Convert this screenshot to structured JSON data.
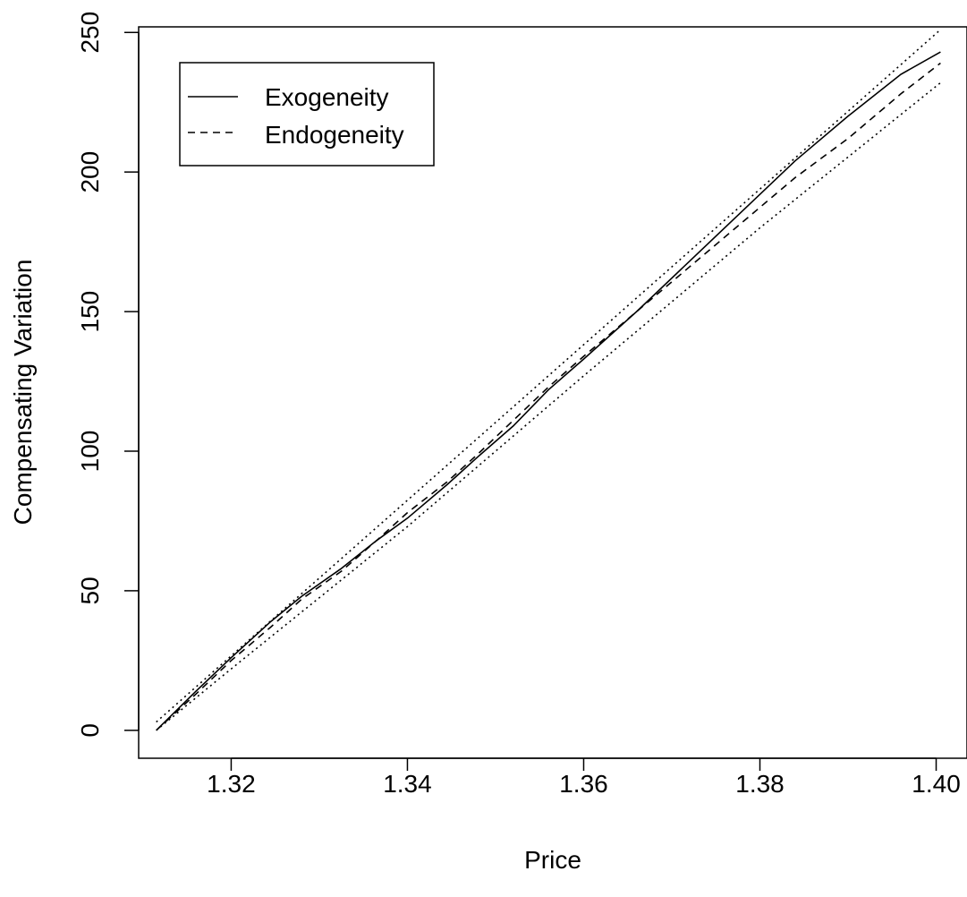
{
  "chart_data": {
    "type": "line",
    "title": "",
    "xlabel": "Price",
    "ylabel": "Compensating Variation",
    "xlim": [
      1.3095,
      1.4035
    ],
    "ylim": [
      -10,
      252
    ],
    "x_ticks": [
      1.32,
      1.34,
      1.36,
      1.38,
      1.4
    ],
    "x_tick_labels": [
      "1.32",
      "1.34",
      "1.36",
      "1.38",
      "1.40"
    ],
    "y_ticks": [
      0,
      50,
      100,
      150,
      200,
      250
    ],
    "y_tick_labels": [
      "0",
      "50",
      "100",
      "150",
      "200",
      "250"
    ],
    "grid": false,
    "legend_position": "top-left",
    "legend": [
      {
        "label": "Exogeneity",
        "style": "solid"
      },
      {
        "label": "Endogeneity",
        "style": "dashed"
      }
    ],
    "series": [
      {
        "name": "Exogeneity",
        "style": "solid",
        "x": [
          1.3115,
          1.316,
          1.32,
          1.3245,
          1.328,
          1.3325,
          1.3365,
          1.34,
          1.3445,
          1.348,
          1.352,
          1.356,
          1.36,
          1.366,
          1.372,
          1.378,
          1.384,
          1.39,
          1.396,
          1.4005
        ],
        "y": [
          0,
          14,
          26,
          39,
          48,
          58,
          68,
          76,
          88,
          98,
          109,
          122,
          133,
          150,
          168,
          186,
          204,
          220,
          235,
          243
        ]
      },
      {
        "name": "Endogeneity",
        "style": "dashed",
        "x": [
          1.3115,
          1.316,
          1.32,
          1.3245,
          1.328,
          1.3325,
          1.3365,
          1.34,
          1.3445,
          1.348,
          1.352,
          1.356,
          1.36,
          1.366,
          1.372,
          1.378,
          1.384,
          1.39,
          1.396,
          1.4005
        ],
        "y": [
          0,
          13,
          25,
          37,
          47,
          57,
          68,
          78,
          89,
          99,
          111,
          123,
          134,
          150,
          166,
          182,
          198,
          212,
          228,
          239
        ]
      },
      {
        "name": "",
        "style": "dotted",
        "x": [
          1.3115,
          1.4005
        ],
        "y": [
          3,
          251
        ]
      },
      {
        "name": "",
        "style": "dotted",
        "x": [
          1.3115,
          1.32,
          1.34,
          1.36,
          1.38,
          1.4005
        ],
        "y": [
          0,
          22,
          73,
          127,
          180,
          232
        ]
      }
    ]
  }
}
